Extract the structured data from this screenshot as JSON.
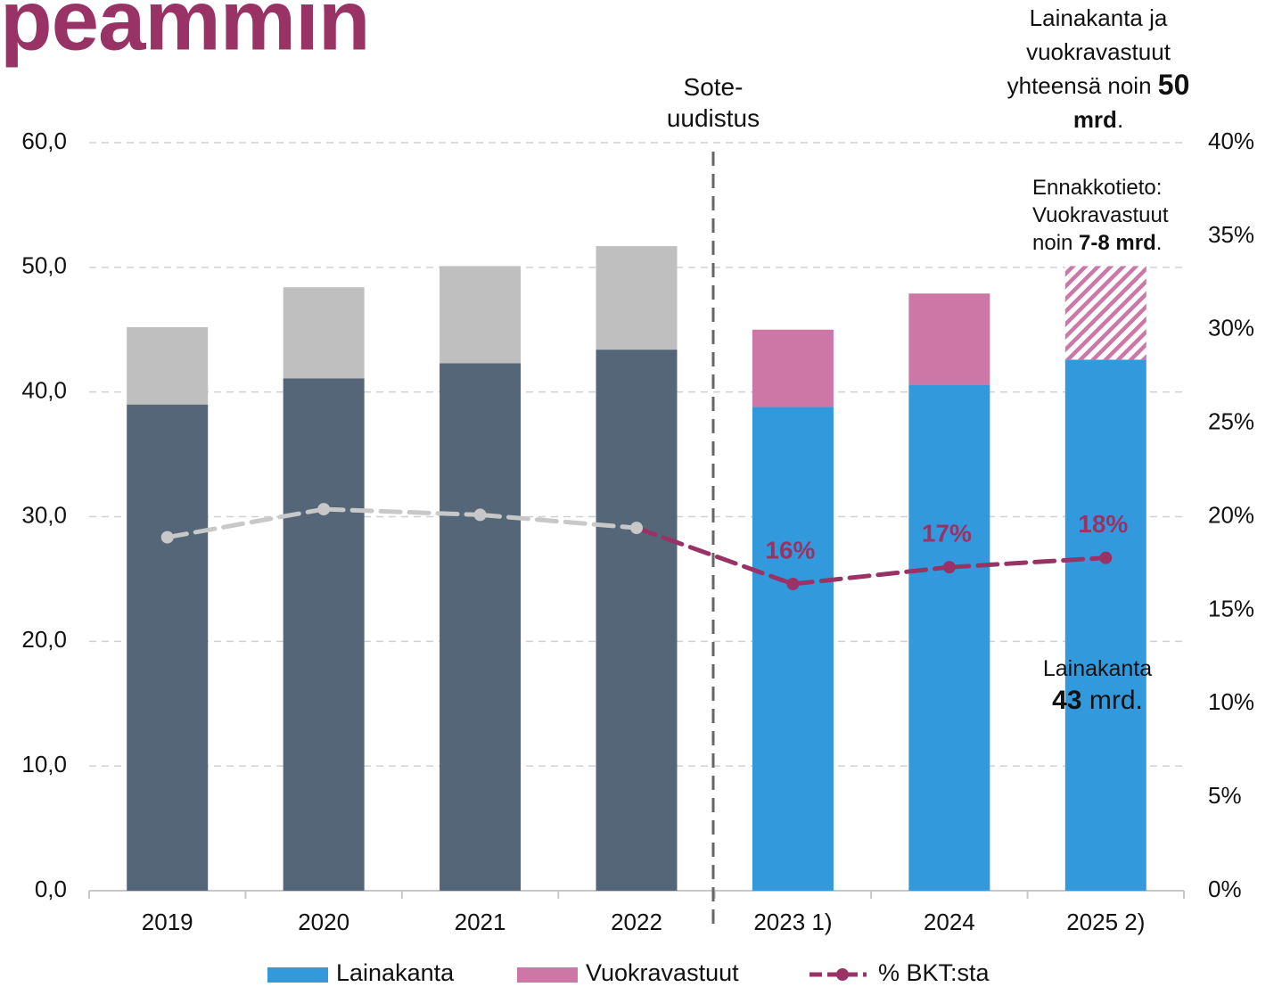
{
  "chart_data": {
    "type": "bar",
    "title": "peammin",
    "categories": [
      "2019",
      "2020",
      "2021",
      "2022",
      "2023 1)",
      "2024",
      "2025 2)"
    ],
    "stacked": true,
    "series": [
      {
        "name": "Lainakanta",
        "color": "#3399dd",
        "colors": [
          "#546678",
          "#546678",
          "#546678",
          "#546678",
          "#3399dd",
          "#3399dd",
          "#3399dd"
        ],
        "values": [
          39.0,
          41.1,
          42.3,
          43.4,
          38.8,
          40.6,
          42.6
        ]
      },
      {
        "name": "Vuokravastuut",
        "color": "#cc77a6",
        "colors": [
          "#bfbfbf",
          "#bfbfbf",
          "#bfbfbf",
          "#bfbfbf",
          "#cc77a6",
          "#cc77a6",
          "#cc77a6"
        ],
        "patterns": [
          "solid",
          "solid",
          "solid",
          "solid",
          "solid",
          "solid",
          "hatched"
        ],
        "values": [
          6.2,
          7.3,
          7.8,
          8.3,
          6.2,
          7.3,
          7.5
        ]
      },
      {
        "name": "% BKT:sta",
        "type": "line",
        "axis": "y2",
        "dashed": true,
        "color": "#993366",
        "colors": [
          "#c8c8c8",
          "#c8c8c8",
          "#c8c8c8",
          "#c8c8c8",
          "#993366",
          "#993366",
          "#993366"
        ],
        "values": [
          18.9,
          20.4,
          20.1,
          19.4,
          16.4,
          17.3,
          17.8
        ],
        "value_labels": [
          null,
          null,
          null,
          null,
          "16%",
          "17%",
          "18%"
        ]
      }
    ],
    "ylim": [
      0,
      60
    ],
    "yticks": [
      {
        "value": 0,
        "label": "0,0"
      },
      {
        "value": 10,
        "label": "10,0"
      },
      {
        "value": 20,
        "label": "20,0"
      },
      {
        "value": 30,
        "label": "30,0"
      },
      {
        "value": 40,
        "label": "40,0"
      },
      {
        "value": 50,
        "label": "50,0"
      },
      {
        "value": 60,
        "label": "60,0"
      }
    ],
    "y2lim": [
      0,
      40
    ],
    "y2ticks": [
      {
        "value": 0,
        "label": "0%"
      },
      {
        "value": 5,
        "label": "5%"
      },
      {
        "value": 10,
        "label": "10%"
      },
      {
        "value": 15,
        "label": "15%"
      },
      {
        "value": 20,
        "label": "20%"
      },
      {
        "value": 25,
        "label": "25%"
      },
      {
        "value": 30,
        "label": "30%"
      },
      {
        "value": 35,
        "label": "35%"
      },
      {
        "value": 40,
        "label": "40%"
      }
    ],
    "grid": true,
    "legend": "bottom",
    "annotations": [
      {
        "lines": [
          [
            "Sote-"
          ],
          [
            "uudistus"
          ]
        ]
      },
      {
        "lines": [
          [
            "Lainakanta ja"
          ],
          [
            "vuokravastuut"
          ],
          [
            "yhteensä noin ",
            {
              "text": "50",
              "bold": true
            }
          ],
          [
            {
              "text": "mrd",
              "bold": true
            },
            "."
          ]
        ]
      },
      {
        "lines": [
          [
            "Ennakkotieto:"
          ],
          [
            "Vuokravastuut"
          ],
          [
            "noin ",
            {
              "text": "7-8 mrd",
              "bold": true
            },
            "."
          ]
        ]
      },
      {
        "lines": [
          [
            "Lainakanta"
          ],
          [
            {
              "text": "43",
              "bold": true
            },
            " mrd."
          ]
        ]
      }
    ]
  }
}
